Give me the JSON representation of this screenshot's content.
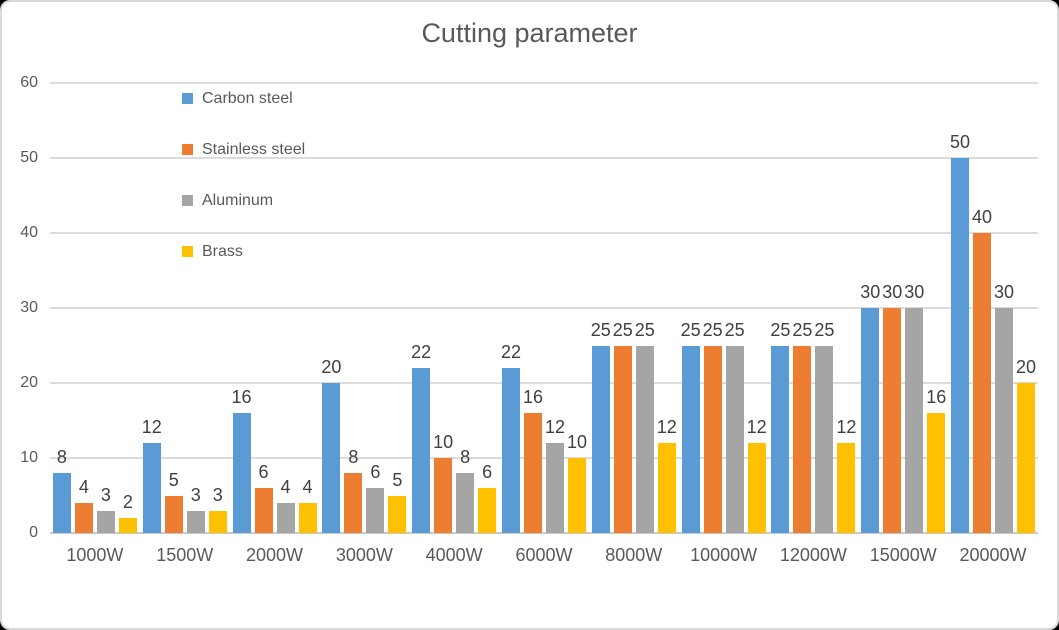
{
  "frame": {
    "background_color": "#FFFFFF",
    "border_color": "#D9D9D9",
    "outside_color": "#000000"
  },
  "chart_data": {
    "type": "bar",
    "title": "Cutting parameter",
    "categories": [
      "1000W",
      "1500W",
      "2000W",
      "3000W",
      "4000W",
      "6000W",
      "8000W",
      "10000W",
      "12000W",
      "15000W",
      "20000W"
    ],
    "series": [
      {
        "name": "Carbon steel",
        "color": "#5B9BD5",
        "values": [
          8,
          12,
          16,
          20,
          22,
          22,
          25,
          25,
          25,
          30,
          50
        ]
      },
      {
        "name": "Stainless steel",
        "color": "#ED7D31",
        "values": [
          4,
          5,
          6,
          8,
          10,
          16,
          25,
          25,
          25,
          30,
          40
        ]
      },
      {
        "name": "Aluminum",
        "color": "#A5A5A5",
        "values": [
          3,
          3,
          4,
          6,
          8,
          12,
          25,
          25,
          25,
          30,
          30
        ]
      },
      {
        "name": "Brass",
        "color": "#FFC000",
        "values": [
          2,
          3,
          4,
          5,
          6,
          10,
          12,
          12,
          12,
          16,
          20
        ]
      }
    ],
    "xlabel": "",
    "ylabel": "",
    "ylim": [
      0,
      60
    ],
    "yticks": [
      0,
      10,
      20,
      30,
      40,
      50,
      60
    ],
    "grid": true,
    "gridline_color": "#DCDCDC",
    "axis_line_color": "#C9C9C9",
    "axis_text_color": "#595959",
    "data_label_color": "#404040",
    "data_labels": true,
    "legend_position": "upper-left-vertical"
  }
}
